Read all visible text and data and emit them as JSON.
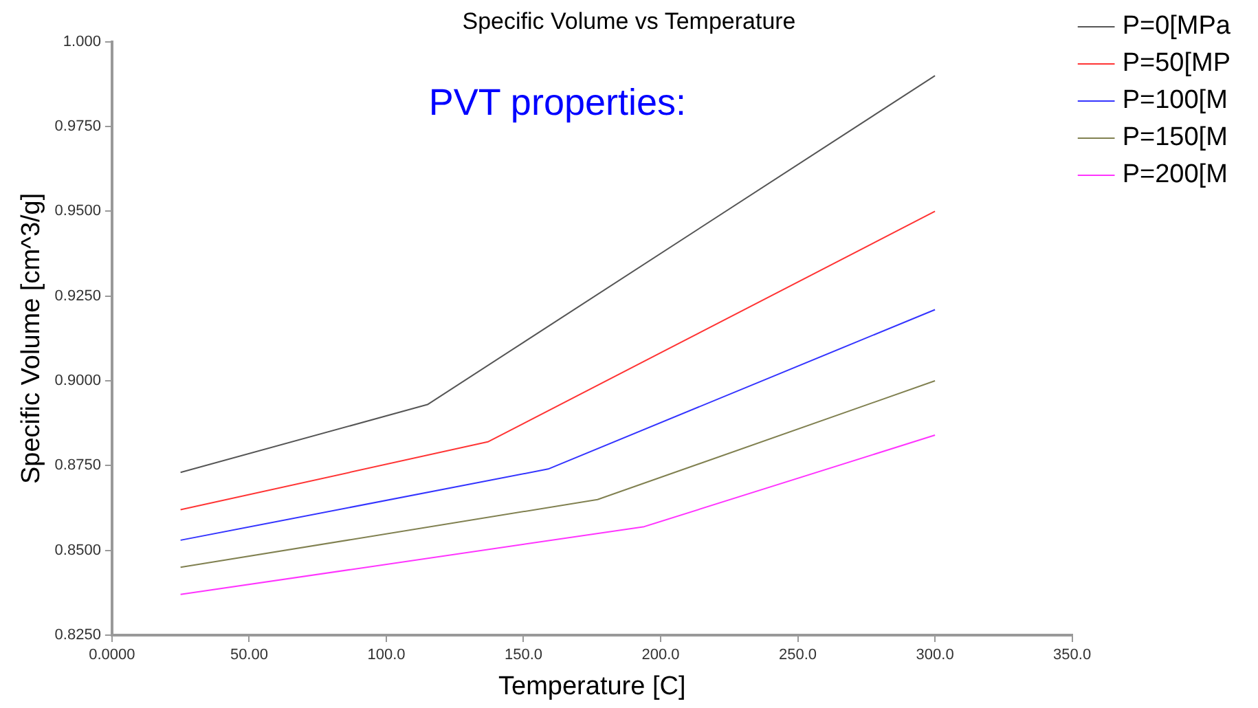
{
  "chart_data": {
    "type": "line",
    "title": "Specific Volume vs Temperature",
    "xlabel": "Temperature [C]",
    "ylabel": "Specific Volume [cm^3/g]",
    "annotations": [
      "PVT properties:"
    ],
    "xlim": [
      0,
      350
    ],
    "xticks": [
      {
        "value": 0,
        "label": "0.0000"
      },
      {
        "value": 50,
        "label": "50.00"
      },
      {
        "value": 100,
        "label": "100.0"
      },
      {
        "value": 150,
        "label": "150.0"
      },
      {
        "value": 200,
        "label": "200.0"
      },
      {
        "value": 250,
        "label": "250.0"
      },
      {
        "value": 300,
        "label": "300.0"
      },
      {
        "value": 350,
        "label": "350.0"
      }
    ],
    "ylim": [
      0.825,
      1.0
    ],
    "yticks": [
      {
        "value": 0.825,
        "label": "0.8250"
      },
      {
        "value": 0.85,
        "label": "0.8500"
      },
      {
        "value": 0.875,
        "label": "0.8750"
      },
      {
        "value": 0.9,
        "label": "0.9000"
      },
      {
        "value": 0.925,
        "label": "0.9250"
      },
      {
        "value": 0.95,
        "label": "0.9500"
      },
      {
        "value": 0.975,
        "label": "0.9750"
      },
      {
        "value": 1.0,
        "label": "1.000"
      }
    ],
    "grid": false,
    "legend": "right",
    "marker": "none",
    "line_style": "solid",
    "series": [
      {
        "name": "P=0[MPa",
        "color": "#555555",
        "x": [
          25,
          115,
          300
        ],
        "values": [
          0.873,
          0.893,
          0.99
        ]
      },
      {
        "name": "P=50[MP",
        "color": "#ff3333",
        "x": [
          25,
          137,
          300
        ],
        "values": [
          0.862,
          0.882,
          0.95
        ]
      },
      {
        "name": "P=100[M",
        "color": "#3333ff",
        "x": [
          25,
          159,
          300
        ],
        "values": [
          0.853,
          0.874,
          0.921
        ]
      },
      {
        "name": "P=150[M",
        "color": "#808050",
        "x": [
          25,
          177,
          300
        ],
        "values": [
          0.845,
          0.865,
          0.9
        ]
      },
      {
        "name": "P=200[M",
        "color": "#ff33ff",
        "x": [
          25,
          194,
          300
        ],
        "values": [
          0.837,
          0.857,
          0.884
        ]
      }
    ]
  }
}
